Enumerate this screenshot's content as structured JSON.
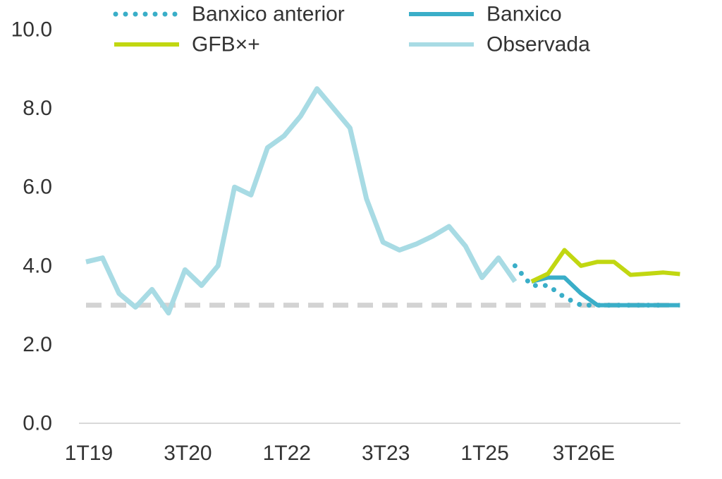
{
  "chart_data": {
    "type": "line",
    "title": "",
    "xlabel": "",
    "ylabel": "",
    "ylim": [
      0,
      10
    ],
    "yticks": [
      "0.0",
      "2.0",
      "4.0",
      "6.0",
      "8.0",
      "10.0"
    ],
    "xtick_labels": [
      {
        "index": 0,
        "label": "1T19"
      },
      {
        "index": 6,
        "label": "3T20"
      },
      {
        "index": 12,
        "label": "1T22"
      },
      {
        "index": 18,
        "label": "3T23"
      },
      {
        "index": 24,
        "label": "1T25"
      },
      {
        "index": 30,
        "label": "3T26E"
      }
    ],
    "legend_position": "top",
    "target_line": {
      "value": 3.0,
      "color": "#d3d3d3"
    },
    "series": [
      {
        "name": "Observada",
        "color": "#a8dbe4",
        "style": "solid",
        "start_index": 0,
        "values": [
          4.1,
          4.2,
          3.3,
          2.95,
          3.4,
          2.8,
          3.9,
          3.5,
          4.0,
          6.0,
          5.8,
          7.0,
          7.3,
          7.8,
          8.5,
          8.0,
          7.5,
          5.7,
          4.6,
          4.4,
          4.55,
          4.75,
          5.0,
          4.5,
          3.7,
          4.2,
          3.6
        ]
      },
      {
        "name": "Banxico anterior",
        "color": "#3aaec8",
        "style": "dotted",
        "start_index": 26,
        "values": [
          4.0,
          3.5,
          3.5,
          3.2,
          3.0,
          3.0,
          3.0,
          3.0,
          3.0,
          3.0
        ]
      },
      {
        "name": "Banxico",
        "color": "#3aaec8",
        "style": "solid",
        "start_index": 27,
        "values": [
          3.6,
          3.7,
          3.7,
          3.3,
          3.0,
          3.0,
          3.0,
          3.0,
          3.0,
          3.0
        ]
      },
      {
        "name": "GFB×+",
        "color": "#c1d711",
        "style": "solid",
        "start_index": 27,
        "values": [
          3.6,
          3.8,
          4.4,
          4.0,
          4.1,
          4.1,
          3.77,
          3.8,
          3.83,
          3.79
        ]
      }
    ]
  },
  "legend": {
    "items": [
      {
        "label": "Banxico anterior",
        "color": "#3aaec8",
        "style": "dotted"
      },
      {
        "label": "Banxico",
        "color": "#3aaec8",
        "style": "solid"
      },
      {
        "label": "GFB×+",
        "color": "#c1d711",
        "style": "solid"
      },
      {
        "label": "Observada",
        "color": "#a8dbe4",
        "style": "solid"
      }
    ]
  }
}
